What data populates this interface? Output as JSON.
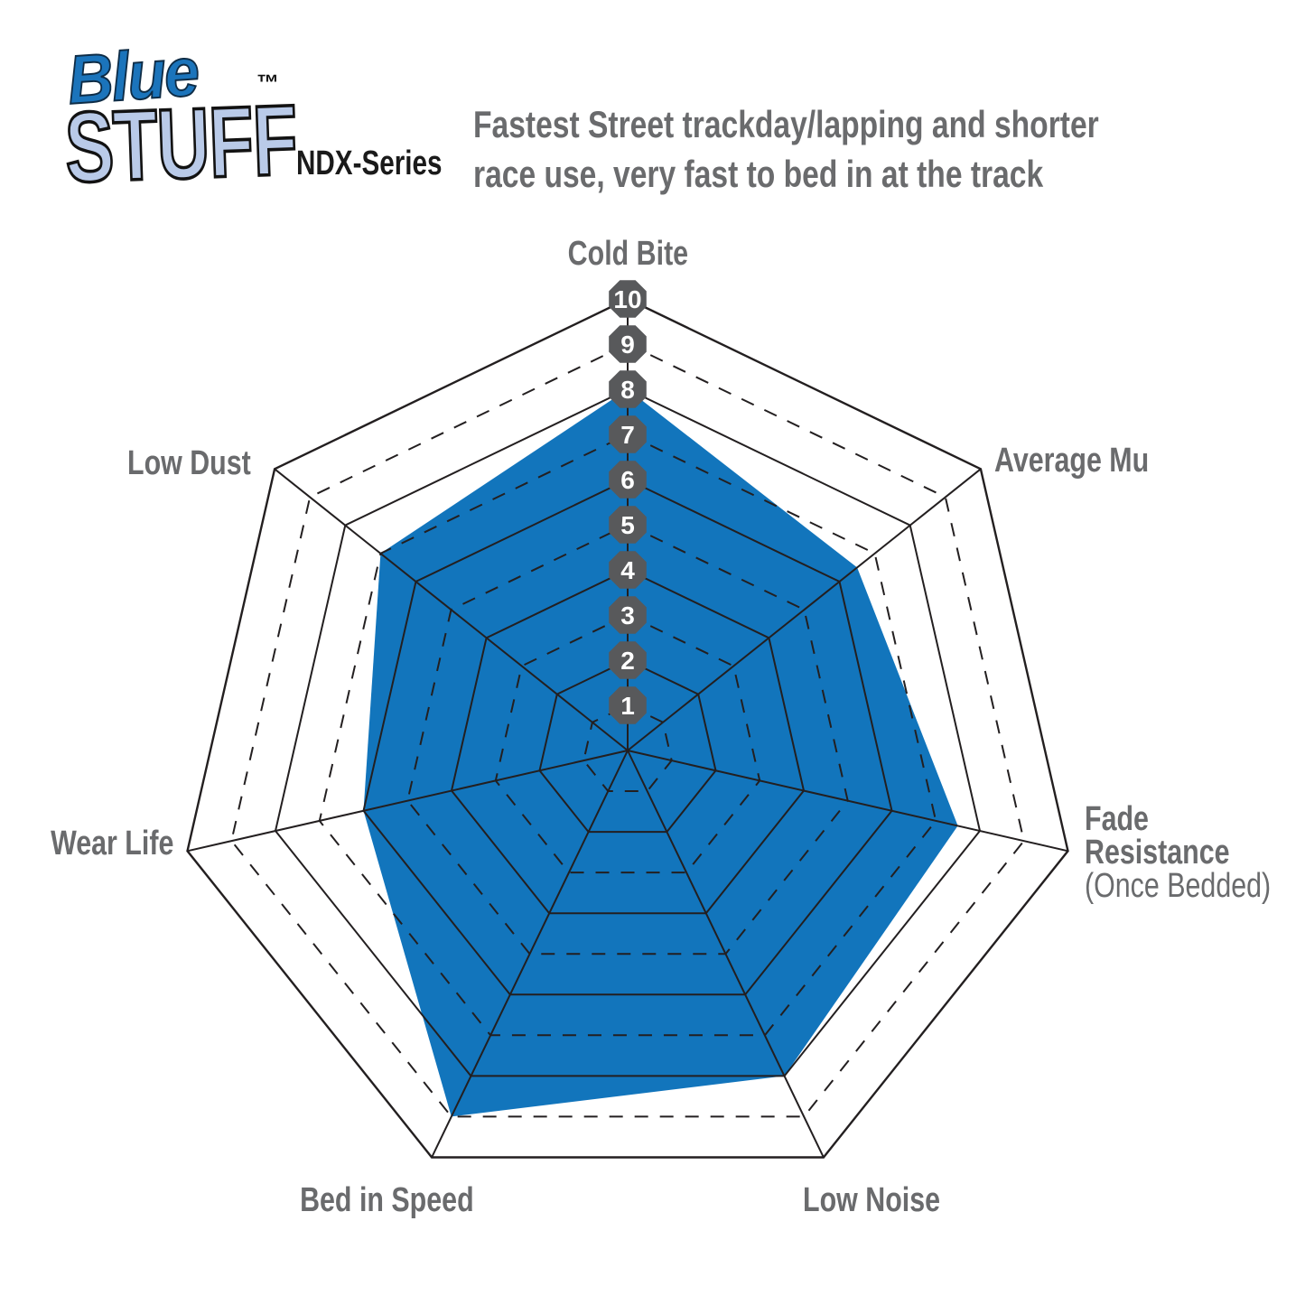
{
  "logo": {
    "brand_line1": "Blue",
    "brand_line2": "STUFF",
    "trademark": "™",
    "series": "NDX-Series"
  },
  "header": {
    "description_line1": "Fastest Street trackday/lapping and shorter",
    "description_line2": "race use, very fast to bed in at the track"
  },
  "labels": {
    "cold_bite": "Cold Bite",
    "average_mu": "Average Mu",
    "fade_line1": "Fade",
    "fade_line2": "Resistance",
    "fade_line3": "(Once Bedded)",
    "low_noise": "Low Noise",
    "bed_in_speed": "Bed in Speed",
    "wear_life": "Wear Life",
    "low_dust": "Low Dust"
  },
  "chart_data": {
    "type": "radar",
    "title": "BlueStuff NDX-Series brake pad performance ratings",
    "categories": [
      "Cold Bite",
      "Average Mu",
      "Fade Resistance (Once Bedded)",
      "Low Noise",
      "Bed in Speed",
      "Wear Life",
      "Low Dust"
    ],
    "series": [
      {
        "name": "BlueStuff NDX-Series",
        "values": [
          8,
          6.5,
          7.5,
          8,
          9,
          6,
          7
        ]
      }
    ],
    "axis_min": 0,
    "axis_max": 10,
    "ticks": [
      1,
      2,
      3,
      4,
      5,
      6,
      7,
      8,
      9,
      10
    ],
    "grid": "concentric heptagon rings 1-10; odd rings dashed, even rings solid; solid spokes on all 7 axes; tick markers shown as gray octagons along the vertical Cold Bite axis",
    "legend_position": "none",
    "fill_color": "#1275BC",
    "line_color": "#231F20",
    "marker_color": "#58595B",
    "marker_text_color": "#FFFFFF"
  },
  "colors": {
    "accent_blue": "#1275BC",
    "label_gray": "#6A6B6D",
    "grid_black": "#231F20",
    "octagon_gray": "#58595B",
    "logo_blue": "#1B74BB",
    "logo_light_blue": "#B9CAE8"
  }
}
